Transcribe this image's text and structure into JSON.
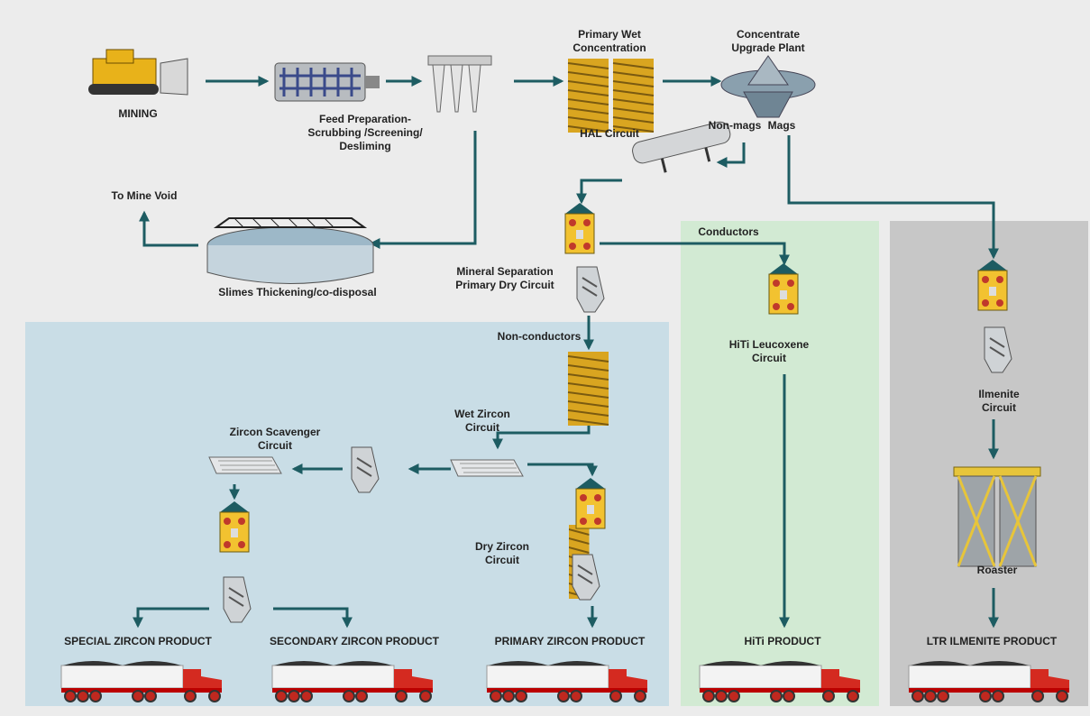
{
  "labels": [
    [
      "MINING"
    ],
    [
      "Feed Preparation-",
      "Scrubbing /Screening/",
      "Desliming"
    ],
    [
      "Primary Wet",
      "Concentration"
    ],
    [
      "HAL Circuit"
    ],
    [
      "Concentrate",
      "Upgrade Plant"
    ],
    [
      "Non-mags"
    ],
    [
      "Mags"
    ],
    [
      "To Mine Void"
    ],
    [
      "Slimes Thickening/co-disposal"
    ],
    [
      "Mineral Separation",
      "Primary Dry Circuit"
    ],
    [
      "Conductors"
    ],
    [
      "HiTi Leucoxene",
      "Circuit"
    ],
    [
      "Ilmenite",
      "Circuit"
    ],
    [
      "Non-conductors"
    ],
    [
      "Wet Zircon",
      "Circuit"
    ],
    [
      "Zircon Scavenger",
      "Circuit"
    ],
    [
      "Dry Zircon",
      "Circuit"
    ],
    [
      "Roaster"
    ],
    [
      "SPECIAL ZIRCON PRODUCT"
    ],
    [
      "SECONDARY ZIRCON PRODUCT"
    ],
    [
      "PRIMARY ZIRCON PRODUCT"
    ],
    [
      "HiTi PRODUCT"
    ],
    [
      "LTR ILMENITE PRODUCT"
    ]
  ]
}
